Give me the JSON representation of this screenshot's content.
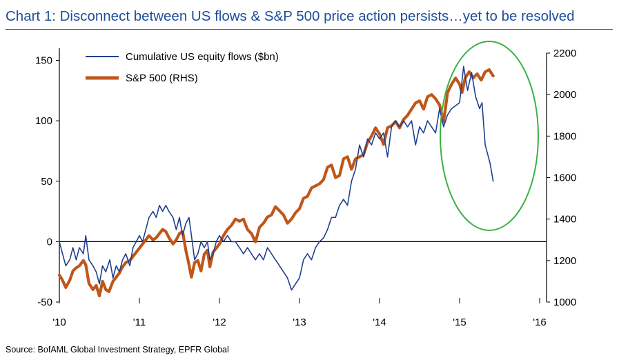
{
  "chart_data": {
    "type": "line",
    "title": "Chart 1: Disconnect between US flows & S&P 500 price action persists…yet to be resolved",
    "source": "Source: BofAML Global Investment Strategy, EPFR Global",
    "x_ticks": [
      "'10",
      "'11",
      "'12",
      "'13",
      "'14",
      "'15",
      "'16"
    ],
    "xlim": [
      2010,
      2016
    ],
    "y_left": {
      "lim": [
        -50,
        160
      ],
      "ticks": [
        -50,
        0,
        50,
        100,
        150
      ]
    },
    "y_right": {
      "lim": [
        1000,
        2200
      ],
      "ticks": [
        1000,
        1200,
        1400,
        1600,
        1800,
        2000,
        2200
      ]
    },
    "legend_position": "top-left",
    "annotation": "green ellipse around 2015 divergence",
    "colors": {
      "flows": "#1f3f8f",
      "sp500": "#c0561a",
      "ellipse": "#3cb043",
      "title": "#1f4e9c"
    },
    "series": [
      {
        "name": "Cumulative US equity flows ($bn)",
        "axis": "left",
        "points": [
          [
            2010.0,
            0
          ],
          [
            2010.04,
            -10
          ],
          [
            2010.08,
            -20
          ],
          [
            2010.13,
            -15
          ],
          [
            2010.17,
            -5
          ],
          [
            2010.21,
            -15
          ],
          [
            2010.25,
            -5
          ],
          [
            2010.3,
            -10
          ],
          [
            2010.33,
            5
          ],
          [
            2010.37,
            -15
          ],
          [
            2010.42,
            -20
          ],
          [
            2010.46,
            -25
          ],
          [
            2010.5,
            -35
          ],
          [
            2010.54,
            -20
          ],
          [
            2010.58,
            -25
          ],
          [
            2010.63,
            -15
          ],
          [
            2010.67,
            -30
          ],
          [
            2010.71,
            -20
          ],
          [
            2010.75,
            -25
          ],
          [
            2010.79,
            -15
          ],
          [
            2010.83,
            -10
          ],
          [
            2010.88,
            -20
          ],
          [
            2010.92,
            -5
          ],
          [
            2010.96,
            0
          ],
          [
            2011.0,
            5
          ],
          [
            2011.04,
            0
          ],
          [
            2011.08,
            10
          ],
          [
            2011.12,
            20
          ],
          [
            2011.17,
            25
          ],
          [
            2011.21,
            20
          ],
          [
            2011.25,
            30
          ],
          [
            2011.29,
            25
          ],
          [
            2011.33,
            30
          ],
          [
            2011.37,
            25
          ],
          [
            2011.42,
            20
          ],
          [
            2011.46,
            10
          ],
          [
            2011.5,
            20
          ],
          [
            2011.54,
            5
          ],
          [
            2011.58,
            15
          ],
          [
            2011.62,
            20
          ],
          [
            2011.65,
            5
          ],
          [
            2011.69,
            -15
          ],
          [
            2011.73,
            -10
          ],
          [
            2011.77,
            0
          ],
          [
            2011.81,
            -5
          ],
          [
            2011.85,
            0
          ],
          [
            2011.88,
            -15
          ],
          [
            2011.92,
            -10
          ],
          [
            2011.96,
            0
          ],
          [
            2012.0,
            5
          ],
          [
            2012.05,
            0
          ],
          [
            2012.1,
            5
          ],
          [
            2012.15,
            0
          ],
          [
            2012.2,
            0
          ],
          [
            2012.25,
            -5
          ],
          [
            2012.3,
            -10
          ],
          [
            2012.35,
            -5
          ],
          [
            2012.4,
            -10
          ],
          [
            2012.45,
            -15
          ],
          [
            2012.5,
            -10
          ],
          [
            2012.55,
            -15
          ],
          [
            2012.6,
            -5
          ],
          [
            2012.65,
            -10
          ],
          [
            2012.7,
            -15
          ],
          [
            2012.75,
            -20
          ],
          [
            2012.8,
            -25
          ],
          [
            2012.85,
            -30
          ],
          [
            2012.9,
            -40
          ],
          [
            2012.95,
            -35
          ],
          [
            2013.0,
            -30
          ],
          [
            2013.05,
            -15
          ],
          [
            2013.1,
            -10
          ],
          [
            2013.15,
            -15
          ],
          [
            2013.2,
            -5
          ],
          [
            2013.25,
            0
          ],
          [
            2013.3,
            3
          ],
          [
            2013.35,
            10
          ],
          [
            2013.4,
            20
          ],
          [
            2013.45,
            20
          ],
          [
            2013.5,
            30
          ],
          [
            2013.55,
            35
          ],
          [
            2013.6,
            30
          ],
          [
            2013.65,
            50
          ],
          [
            2013.7,
            60
          ],
          [
            2013.75,
            80
          ],
          [
            2013.8,
            70
          ],
          [
            2013.85,
            85
          ],
          [
            2013.9,
            80
          ],
          [
            2013.95,
            90
          ],
          [
            2014.0,
            85
          ],
          [
            2014.05,
            90
          ],
          [
            2014.1,
            70
          ],
          [
            2014.15,
            95
          ],
          [
            2014.2,
            100
          ],
          [
            2014.25,
            95
          ],
          [
            2014.3,
            100
          ],
          [
            2014.35,
            95
          ],
          [
            2014.4,
            100
          ],
          [
            2014.45,
            80
          ],
          [
            2014.5,
            95
          ],
          [
            2014.55,
            90
          ],
          [
            2014.6,
            100
          ],
          [
            2014.65,
            95
          ],
          [
            2014.7,
            90
          ],
          [
            2014.75,
            110
          ],
          [
            2014.8,
            95
          ],
          [
            2014.85,
            105
          ],
          [
            2014.9,
            110
          ],
          [
            2015.0,
            115
          ],
          [
            2015.05,
            145
          ],
          [
            2015.1,
            125
          ],
          [
            2015.15,
            140
          ],
          [
            2015.2,
            120
          ],
          [
            2015.25,
            110
          ],
          [
            2015.28,
            115
          ],
          [
            2015.32,
            80
          ],
          [
            2015.38,
            65
          ],
          [
            2015.42,
            50
          ]
        ]
      },
      {
        "name": "S&P 500 (RHS)",
        "axis": "right",
        "points": [
          [
            2010.0,
            1130
          ],
          [
            2010.04,
            1105
          ],
          [
            2010.08,
            1070
          ],
          [
            2010.13,
            1105
          ],
          [
            2010.17,
            1150
          ],
          [
            2010.21,
            1165
          ],
          [
            2010.25,
            1175
          ],
          [
            2010.3,
            1200
          ],
          [
            2010.33,
            1180
          ],
          [
            2010.37,
            1090
          ],
          [
            2010.42,
            1060
          ],
          [
            2010.46,
            1080
          ],
          [
            2010.5,
            1030
          ],
          [
            2010.54,
            1100
          ],
          [
            2010.58,
            1060
          ],
          [
            2010.62,
            1050
          ],
          [
            2010.67,
            1100
          ],
          [
            2010.71,
            1120
          ],
          [
            2010.75,
            1140
          ],
          [
            2010.79,
            1170
          ],
          [
            2010.83,
            1190
          ],
          [
            2010.88,
            1200
          ],
          [
            2010.92,
            1220
          ],
          [
            2010.96,
            1240
          ],
          [
            2011.0,
            1260
          ],
          [
            2011.04,
            1280
          ],
          [
            2011.08,
            1300
          ],
          [
            2011.12,
            1320
          ],
          [
            2011.17,
            1300
          ],
          [
            2011.21,
            1310
          ],
          [
            2011.25,
            1330
          ],
          [
            2011.29,
            1350
          ],
          [
            2011.33,
            1340
          ],
          [
            2011.37,
            1310
          ],
          [
            2011.42,
            1280
          ],
          [
            2011.46,
            1300
          ],
          [
            2011.5,
            1330
          ],
          [
            2011.54,
            1340
          ],
          [
            2011.58,
            1250
          ],
          [
            2011.62,
            1180
          ],
          [
            2011.65,
            1120
          ],
          [
            2011.69,
            1190
          ],
          [
            2011.73,
            1200
          ],
          [
            2011.77,
            1150
          ],
          [
            2011.81,
            1230
          ],
          [
            2011.85,
            1250
          ],
          [
            2011.88,
            1170
          ],
          [
            2011.92,
            1240
          ],
          [
            2011.96,
            1260
          ],
          [
            2012.0,
            1280
          ],
          [
            2012.05,
            1320
          ],
          [
            2012.1,
            1350
          ],
          [
            2012.15,
            1370
          ],
          [
            2012.2,
            1400
          ],
          [
            2012.25,
            1390
          ],
          [
            2012.3,
            1400
          ],
          [
            2012.35,
            1350
          ],
          [
            2012.4,
            1330
          ],
          [
            2012.45,
            1290
          ],
          [
            2012.5,
            1360
          ],
          [
            2012.55,
            1380
          ],
          [
            2012.6,
            1410
          ],
          [
            2012.65,
            1420
          ],
          [
            2012.7,
            1460
          ],
          [
            2012.75,
            1440
          ],
          [
            2012.8,
            1420
          ],
          [
            2012.85,
            1380
          ],
          [
            2012.9,
            1400
          ],
          [
            2012.95,
            1430
          ],
          [
            2013.0,
            1450
          ],
          [
            2013.05,
            1500
          ],
          [
            2013.1,
            1510
          ],
          [
            2013.15,
            1550
          ],
          [
            2013.2,
            1560
          ],
          [
            2013.25,
            1570
          ],
          [
            2013.3,
            1590
          ],
          [
            2013.35,
            1650
          ],
          [
            2013.4,
            1660
          ],
          [
            2013.45,
            1600
          ],
          [
            2013.5,
            1610
          ],
          [
            2013.55,
            1690
          ],
          [
            2013.6,
            1700
          ],
          [
            2013.65,
            1640
          ],
          [
            2013.7,
            1690
          ],
          [
            2013.75,
            1700
          ],
          [
            2013.8,
            1710
          ],
          [
            2013.85,
            1770
          ],
          [
            2013.9,
            1800
          ],
          [
            2013.95,
            1840
          ],
          [
            2014.0,
            1810
          ],
          [
            2014.05,
            1760
          ],
          [
            2014.1,
            1840
          ],
          [
            2014.15,
            1850
          ],
          [
            2014.2,
            1870
          ],
          [
            2014.25,
            1840
          ],
          [
            2014.3,
            1880
          ],
          [
            2014.35,
            1900
          ],
          [
            2014.4,
            1930
          ],
          [
            2014.45,
            1960
          ],
          [
            2014.5,
            1970
          ],
          [
            2014.55,
            1930
          ],
          [
            2014.6,
            1990
          ],
          [
            2014.65,
            2000
          ],
          [
            2014.7,
            1980
          ],
          [
            2014.75,
            1950
          ],
          [
            2014.8,
            1870
          ],
          [
            2014.85,
            2010
          ],
          [
            2014.9,
            2050
          ],
          [
            2014.95,
            2080
          ],
          [
            2015.0,
            2050
          ],
          [
            2015.03,
            2010
          ],
          [
            2015.07,
            2080
          ],
          [
            2015.12,
            2110
          ],
          [
            2015.17,
            2080
          ],
          [
            2015.22,
            2100
          ],
          [
            2015.27,
            2070
          ],
          [
            2015.32,
            2110
          ],
          [
            2015.37,
            2120
          ],
          [
            2015.42,
            2090
          ]
        ]
      }
    ]
  }
}
